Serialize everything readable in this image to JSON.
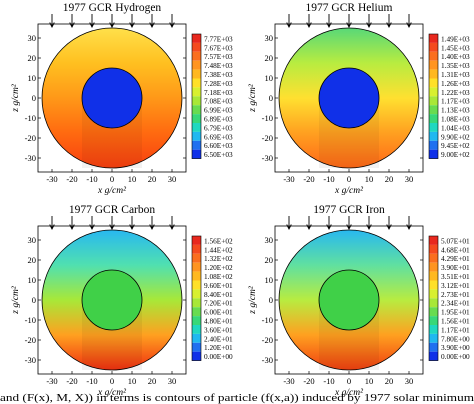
{
  "chart_data": [
    {
      "type": "heatmap",
      "title": "1977 GCR Hydrogen",
      "xlabel": "x g/cm²",
      "ylabel": "z g/cm²",
      "xticks": [
        -30,
        -20,
        -10,
        0,
        10,
        20,
        30
      ],
      "yticks": [
        -30,
        -20,
        -10,
        0,
        10,
        20,
        30
      ],
      "xlim": [
        -37,
        37
      ],
      "ylim": [
        -37,
        37
      ],
      "outer_radius": 35,
      "inner_radius": 15,
      "inner_color": "#1030e8",
      "colorbar": [
        "7.77E+03",
        "7.67E+03",
        "7.57E+03",
        "7.48E+03",
        "7.38E+03",
        "7.28E+03",
        "7.18E+03",
        "7.08E+03",
        "6.99E+03",
        "6.89E+03",
        "6.79E+03",
        "6.69E+03",
        "6.60E+03",
        "6.50E+03"
      ],
      "grad": [
        "#ffe04a",
        "#ffc020",
        "#ff9818",
        "#ff6a10",
        "#f84010"
      ]
    },
    {
      "type": "heatmap",
      "title": "1977 GCR Helium",
      "xlabel": "x g/cm²",
      "ylabel": "z g/cm²",
      "xticks": [
        -30,
        -20,
        -10,
        0,
        10,
        20,
        30
      ],
      "yticks": [
        -30,
        -20,
        -10,
        0,
        10,
        20,
        30
      ],
      "xlim": [
        -37,
        37
      ],
      "ylim": [
        -37,
        37
      ],
      "outer_radius": 35,
      "inner_radius": 15,
      "inner_color": "#1030e8",
      "colorbar": [
        "1.49E+03",
        "1.45E+03",
        "1.40E+03",
        "1.35E+03",
        "1.31E+03",
        "1.26E+03",
        "1.22E+03",
        "1.17E+03",
        "1.13E+03",
        "1.08E+03",
        "1.04E+03",
        "9.90E+02",
        "9.45E+02",
        "9.00E+02"
      ],
      "grad": [
        "#58d878",
        "#b8ec40",
        "#ffe030",
        "#ffa020",
        "#ff6818"
      ]
    },
    {
      "type": "heatmap",
      "title": "1977 GCR Carbon",
      "xlabel": "x g/cm²",
      "ylabel": "z g/cm²",
      "xticks": [
        -30,
        -20,
        -10,
        0,
        10,
        20,
        30
      ],
      "yticks": [
        -30,
        -20,
        -10,
        0,
        10,
        20,
        30
      ],
      "xlim": [
        -37,
        37
      ],
      "ylim": [
        -37,
        37
      ],
      "outer_radius": 35,
      "inner_radius": 15,
      "inner_color": "#40d048",
      "colorbar": [
        "1.56E+02",
        "1.44E+02",
        "1.32E+02",
        "1.20E+02",
        "1.08E+02",
        "9.60E+01",
        "8.40E+01",
        "7.20E+01",
        "6.00E+01",
        "4.80E+01",
        "3.60E+01",
        "2.40E+01",
        "1.20E+01",
        "0.00E+00"
      ],
      "grad": [
        "#28b8f0",
        "#50e0b0",
        "#a8e838",
        "#ffa020",
        "#f03010"
      ]
    },
    {
      "type": "heatmap",
      "title": "1977 GCR Iron",
      "xlabel": "x g/cm²",
      "ylabel": "z g/cm²",
      "xticks": [
        -30,
        -20,
        -10,
        0,
        10,
        20,
        30
      ],
      "yticks": [
        -30,
        -20,
        -10,
        0,
        10,
        20,
        30
      ],
      "xlim": [
        -37,
        37
      ],
      "ylim": [
        -37,
        37
      ],
      "outer_radius": 35,
      "inner_radius": 15,
      "inner_color": "#40d048",
      "colorbar": [
        "5.07E+01",
        "4.68E+01",
        "4.29E+01",
        "3.90E+01",
        "3.51E+01",
        "3.12E+01",
        "2.73E+01",
        "2.34E+01",
        "1.95E+01",
        "1.56E+01",
        "1.17E+01",
        "7.80E+00",
        "3.90E+00",
        "0.00E+00"
      ],
      "grad": [
        "#28b8f0",
        "#60e0a0",
        "#b8ec40",
        "#ffa020",
        "#f04010"
      ]
    }
  ],
  "colorbar_colors": [
    "#e8281e",
    "#f44a1e",
    "#fa6e1e",
    "#ff9420",
    "#ffb820",
    "#ffe028",
    "#d8f030",
    "#a8e838",
    "#68dc50",
    "#38d878",
    "#20d8c0",
    "#20b8f0",
    "#2070f0",
    "#1030e8"
  ],
  "caption": "and (F(x), M, X)) in terms is contours of particle (f(x,a)) induced by 1977 solar minimum"
}
